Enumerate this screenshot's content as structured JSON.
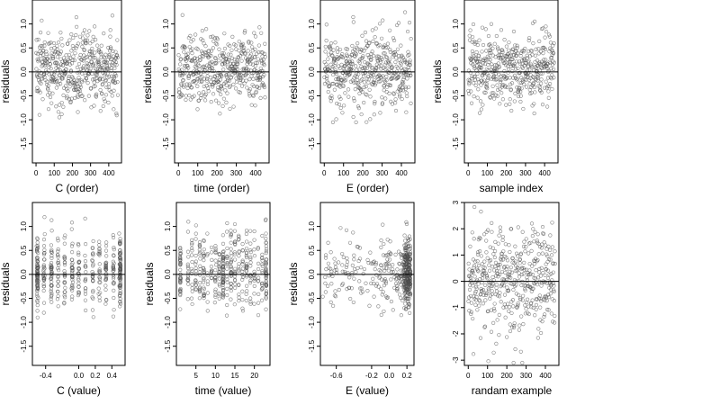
{
  "chart_data": [
    {
      "type": "scatter",
      "xlabel": "C (order)",
      "ylabel": "residuals",
      "xlim": [
        -20,
        470
      ],
      "ylim": [
        -1.9,
        1.5
      ],
      "xticks": [
        0,
        100,
        200,
        300,
        400
      ],
      "xtick_labels": [
        "0",
        "100",
        "200",
        "300",
        "400"
      ],
      "yticks": [
        1.0,
        0.5,
        0.0,
        -0.5,
        -1.0,
        -1.5
      ],
      "ytick_labels": [
        "1.0",
        "0.5",
        "0.0",
        "-0.5",
        "-1.0",
        "-1.5"
      ],
      "reference_line_y": 0,
      "point_count": 450,
      "points": {
        "pattern": "index",
        "n": 450,
        "x_start": 1,
        "x_step": 1,
        "y_sd": 0.38,
        "y_min": -1.8,
        "y_max": 1.4,
        "y_shift": 0.05
      },
      "grid": false,
      "legend": "none"
    },
    {
      "type": "scatter",
      "xlabel": "time (order)",
      "ylabel": "residuals",
      "xlim": [
        -20,
        470
      ],
      "ylim": [
        -1.9,
        1.5
      ],
      "xticks": [
        0,
        100,
        200,
        300,
        400
      ],
      "xtick_labels": [
        "0",
        "100",
        "200",
        "300",
        "400"
      ],
      "yticks": [
        1.0,
        0.5,
        0.0,
        -0.5,
        -1.0,
        -1.5
      ],
      "ytick_labels": [
        "1.0",
        "0.5",
        "0.0",
        "-0.5",
        "-1.0",
        "-1.5"
      ],
      "reference_line_y": 0,
      "point_count": 450,
      "points": {
        "pattern": "index",
        "n": 450,
        "x_start": 1,
        "x_step": 1,
        "y_sd": 0.38,
        "y_min": -1.8,
        "y_max": 1.4,
        "y_shift": 0.05
      },
      "grid": false,
      "legend": "none"
    },
    {
      "type": "scatter",
      "xlabel": "E (order)",
      "ylabel": "residuals",
      "xlim": [
        -20,
        470
      ],
      "ylim": [
        -1.9,
        1.5
      ],
      "xticks": [
        0,
        100,
        200,
        300,
        400
      ],
      "xtick_labels": [
        "0",
        "100",
        "200",
        "300",
        "400"
      ],
      "yticks": [
        1.0,
        0.5,
        0.0,
        -0.5,
        -1.0,
        -1.5
      ],
      "ytick_labels": [
        "1.0",
        "0.5",
        "0.0",
        "-0.5",
        "-1.0",
        "-1.5"
      ],
      "reference_line_y": 0,
      "point_count": 450,
      "points": {
        "pattern": "index",
        "n": 450,
        "x_start": 1,
        "x_step": 1,
        "y_sd": 0.38,
        "y_min": -1.8,
        "y_max": 1.4,
        "y_shift": 0.05
      },
      "grid": false,
      "legend": "none"
    },
    {
      "type": "scatter",
      "xlabel": "sample index",
      "ylabel": "residuals",
      "xlim": [
        -20,
        470
      ],
      "ylim": [
        -1.9,
        1.5
      ],
      "xticks": [
        0,
        100,
        200,
        300,
        400
      ],
      "xtick_labels": [
        "0",
        "100",
        "200",
        "300",
        "400"
      ],
      "yticks": [
        1.0,
        0.5,
        0.0,
        -0.5,
        -1.0,
        -1.5
      ],
      "ytick_labels": [
        "1.0",
        "0.5",
        "0.0",
        "-0.5",
        "-1.0",
        "-1.5"
      ],
      "reference_line_y": 0,
      "point_count": 450,
      "points": {
        "pattern": "index",
        "n": 450,
        "x_start": 1,
        "x_step": 1,
        "y_sd": 0.38,
        "y_min": -1.8,
        "y_max": 1.4,
        "y_shift": 0.05
      },
      "grid": false,
      "legend": "none"
    },
    {
      "type": "scatter",
      "xlabel": "C (value)",
      "ylabel": "residuals",
      "xlim": [
        -0.56,
        0.56
      ],
      "ylim": [
        -1.9,
        1.5
      ],
      "xticks": [
        -0.4,
        0.0,
        0.2,
        0.4
      ],
      "xtick_labels": [
        "-0.4",
        "0.0",
        "0.2",
        "0.4"
      ],
      "yticks": [
        1.0,
        0.5,
        0.0,
        -0.5,
        -1.0,
        -1.5
      ],
      "ytick_labels": [
        "1.0",
        "0.5",
        "0.0",
        "-0.5",
        "-1.0",
        "-1.5"
      ],
      "reference_line_y": 0,
      "point_count": 450,
      "points": {
        "pattern": "levels",
        "n": 450,
        "levels": [
          -0.5,
          -0.42,
          -0.33,
          -0.25,
          -0.17,
          -0.08,
          0.0,
          0.08,
          0.17,
          0.25,
          0.33,
          0.42,
          0.5
        ],
        "weights": [
          3,
          1,
          2,
          1,
          1,
          1,
          1,
          1,
          1,
          1,
          1,
          1,
          3
        ],
        "x_jitter": 0.004,
        "y_sd": 0.38,
        "y_min": -1.8,
        "y_max": 1.4,
        "y_shift": 0.05
      },
      "grid": false,
      "legend": "none"
    },
    {
      "type": "scatter",
      "xlabel": "time (value)",
      "ylabel": "residuals",
      "xlim": [
        0,
        24
      ],
      "ylim": [
        -1.9,
        1.5
      ],
      "xticks": [
        5,
        10,
        15,
        20
      ],
      "xtick_labels": [
        "5",
        "10",
        "15",
        "20"
      ],
      "yticks": [
        1.0,
        0.5,
        0.0,
        -0.5,
        -1.0,
        -1.5
      ],
      "ytick_labels": [
        "1.0",
        "0.5",
        "0.0",
        "-0.5",
        "-1.0",
        "-1.5"
      ],
      "reference_line_y": 0,
      "point_count": 450,
      "points": {
        "pattern": "levels",
        "n": 450,
        "levels": [
          1,
          3,
          4,
          5,
          6,
          7,
          8,
          9,
          10,
          11,
          12,
          13,
          14,
          15,
          16,
          17,
          18,
          19,
          20,
          21,
          22,
          23
        ],
        "weights": [
          2,
          1,
          1,
          1,
          1,
          1,
          1,
          1,
          1,
          1,
          3,
          1,
          1,
          1,
          1,
          1,
          1,
          1,
          1,
          1,
          1,
          3
        ],
        "x_jitter": 0.05,
        "y_sd": 0.38,
        "y_min": -1.8,
        "y_max": 1.4,
        "y_shift": 0.05
      },
      "grid": false,
      "legend": "none"
    },
    {
      "type": "scatter",
      "xlabel": "E (value)",
      "ylabel": "residuals",
      "xlim": [
        -0.78,
        0.28
      ],
      "ylim": [
        -1.9,
        1.5
      ],
      "xticks": [
        -0.6,
        -0.2,
        0.0,
        0.2
      ],
      "xtick_labels": [
        "-0.6",
        "-0.2",
        "0.0",
        "0.2"
      ],
      "yticks": [
        1.0,
        0.5,
        0.0,
        -0.5,
        -1.0,
        -1.5
      ],
      "ytick_labels": [
        "1.0",
        "0.5",
        "0.0",
        "-0.5",
        "-1.0",
        "-1.5"
      ],
      "reference_line_y": 0,
      "point_count": 450,
      "points": {
        "pattern": "skewed",
        "n": 450,
        "x_min": -0.76,
        "x_max": 0.24,
        "x_power": 0.45,
        "cluster_share": 0.35,
        "cluster_center": 0.2,
        "cluster_width": 0.06,
        "y_sd": 0.38,
        "y_min": -1.8,
        "y_max": 1.4,
        "y_shift": 0.05
      },
      "grid": false,
      "legend": "none"
    },
    {
      "type": "scatter",
      "xlabel": "randam example",
      "ylabel": "",
      "xlim": [
        -20,
        470
      ],
      "ylim": [
        -3.2,
        3.0
      ],
      "xticks": [
        0,
        100,
        200,
        300,
        400
      ],
      "xtick_labels": [
        "0",
        "100",
        "200",
        "300",
        "400"
      ],
      "yticks": [
        3,
        2,
        1,
        0,
        -1,
        -2,
        -3
      ],
      "ytick_labels": [
        "3",
        "2",
        "1",
        "0",
        "-1",
        "-2",
        "-3"
      ],
      "reference_line_y": 0,
      "point_count": 450,
      "points": {
        "pattern": "index",
        "n": 450,
        "x_start": 1,
        "x_step": 1,
        "y_sd": 1.0,
        "y_min": -3.1,
        "y_max": 2.9,
        "y_shift": 0
      },
      "grid": false,
      "legend": "none"
    }
  ]
}
